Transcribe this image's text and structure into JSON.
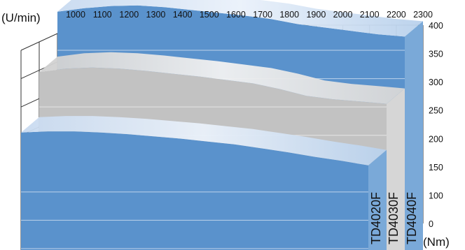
{
  "chart_data": {
    "type": "area",
    "style": "3d-layered",
    "title": "",
    "x_axis": {
      "label": "(U/min)",
      "quantity": "rotational speed",
      "ticks": [
        1000,
        1100,
        1200,
        1300,
        1400,
        1500,
        1600,
        1700,
        1800,
        1900,
        2000,
        2100,
        2200,
        2300
      ],
      "range": [
        1000,
        2300
      ],
      "position": "top"
    },
    "y_axis": {
      "label": "(Nm)",
      "quantity": "torque",
      "ticks": [
        0,
        100,
        150,
        200,
        250,
        300,
        350,
        400
      ],
      "range": [
        0,
        400
      ],
      "position": "right"
    },
    "grid": true,
    "series": [
      {
        "name": "TD4020F",
        "color": "#5b95cf",
        "x": [
          1000,
          1100,
          1200,
          1300,
          1400,
          1500,
          1600,
          1700,
          1800,
          1900,
          2000,
          2100,
          2200,
          2300
        ],
        "y": [
          250,
          252,
          252,
          250,
          247,
          243,
          239,
          234,
          229,
          222,
          215,
          207,
          200,
          192
        ]
      },
      {
        "name": "TD4030F",
        "color": "#c8c8c8",
        "x": [
          1000,
          1100,
          1200,
          1300,
          1400,
          1500,
          1600,
          1700,
          1800,
          1900,
          2000,
          2100,
          2200,
          2300
        ],
        "y": [
          300,
          306,
          308,
          306,
          302,
          297,
          292,
          286,
          280,
          270,
          258,
          252,
          248,
          244
        ]
      },
      {
        "name": "TD4040F",
        "color": "#5b95cf",
        "x": [
          1000,
          1100,
          1200,
          1300,
          1400,
          1500,
          1600,
          1700,
          1800,
          1900,
          2000,
          2100,
          2200,
          2300
        ],
        "y": [
          340,
          346,
          350,
          351,
          348,
          343,
          338,
          333,
          327,
          318,
          312,
          306,
          300,
          296
        ]
      }
    ]
  }
}
